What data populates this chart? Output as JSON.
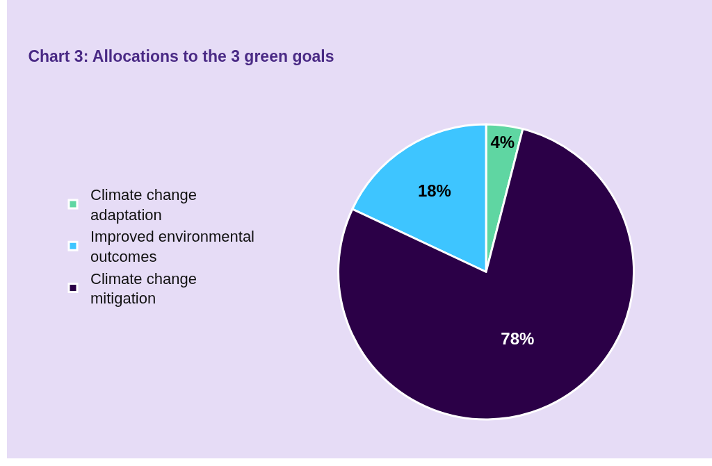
{
  "chart_data": {
    "type": "pie",
    "title": "Chart 3: Allocations to the 3 green goals",
    "categories": [
      "Climate change adaptation",
      "Improved environmental outcomes",
      "Climate change mitigation"
    ],
    "values": [
      4,
      18,
      78
    ],
    "value_labels": [
      "4%",
      "18%",
      "78%"
    ],
    "colors": [
      "#5fd6a2",
      "#3ec5ff",
      "#2b0047"
    ],
    "legend": "left"
  }
}
